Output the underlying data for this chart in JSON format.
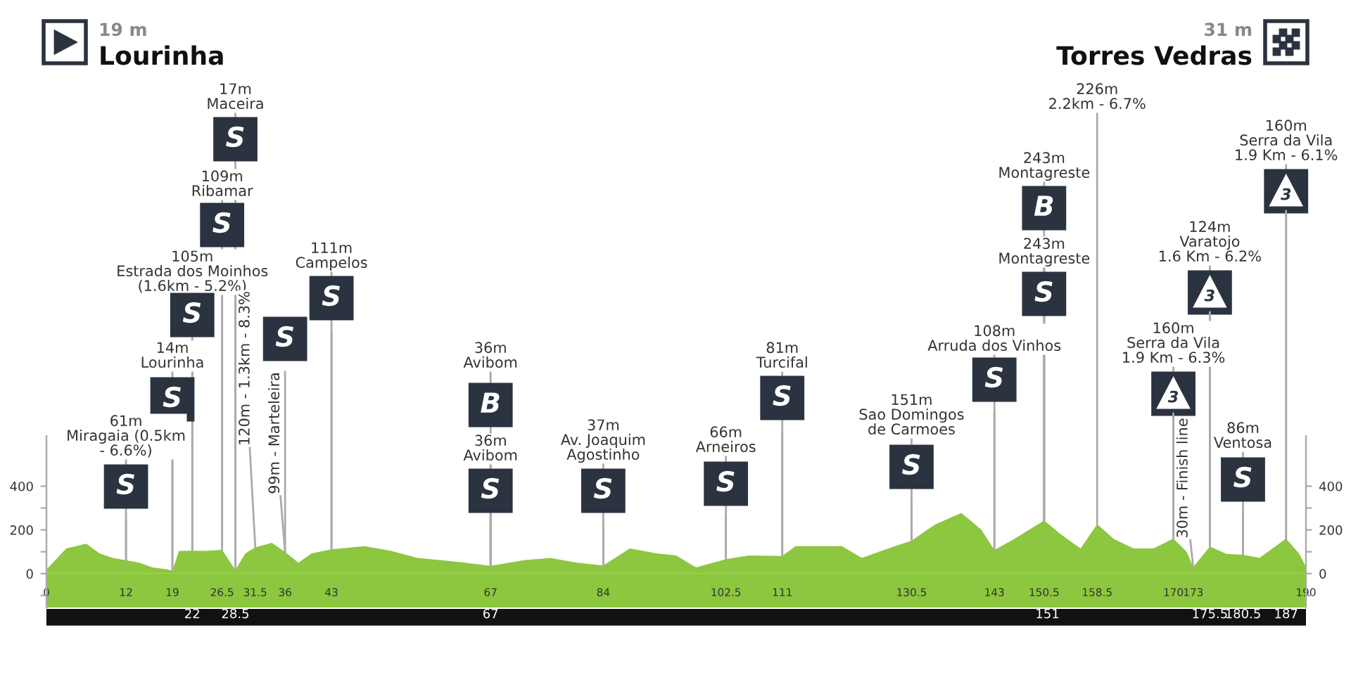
{
  "chart_data": {
    "type": "area",
    "x": [
      0,
      3,
      6,
      8,
      10,
      12,
      14,
      16,
      18,
      19,
      20,
      22,
      24,
      26.5,
      28.5,
      30,
      31.5,
      34,
      36,
      38,
      40,
      43,
      48,
      52,
      56,
      62,
      67,
      72,
      76,
      80,
      84,
      88,
      92,
      95,
      98,
      102.5,
      106,
      111,
      113,
      120,
      123,
      127,
      130.5,
      134,
      138,
      141,
      143,
      146,
      150.5,
      153,
      156,
      158.5,
      161,
      164,
      167,
      170,
      172,
      173,
      175.5,
      178,
      180.5,
      183,
      187,
      189,
      190
    ],
    "series": [
      {
        "color": "#8dc63f",
        "values": [
          19,
          115,
          137,
          93,
          72,
          61,
          50,
          28,
          20,
          14,
          104,
          105,
          104,
          109,
          17,
          93,
          120,
          141,
          99,
          50,
          93,
          111,
          126,
          104,
          72,
          54,
          36,
          61,
          72,
          50,
          37,
          115,
          93,
          83,
          28,
          66,
          83,
          81,
          126,
          126,
          72,
          115,
          151,
          224,
          278,
          202,
          108,
          159,
          243,
          180,
          115,
          226,
          159,
          115,
          115,
          160,
          100,
          30,
          124,
          90,
          86,
          72,
          160,
          90,
          31
        ]
      }
    ],
    "xlim": [
      0,
      190
    ],
    "xticks": [
      0,
      12,
      19,
      26.5,
      31.5,
      36,
      43,
      67,
      84,
      102.5,
      111,
      130.5,
      143,
      150.5,
      158.5,
      170,
      173,
      190
    ],
    "x2lim": [
      0,
      190
    ],
    "x2ticks": [
      22,
      28.5,
      67,
      151,
      175.5,
      180.5,
      187
    ],
    "ylim": [
      -155,
      630
    ],
    "yticks": [
      {
        "value": -100,
        "label": null
      },
      0,
      {
        "value": 100,
        "label": null
      },
      200,
      {
        "value": 300,
        "label": null
      },
      400
    ],
    "y2lim": [
      -155,
      630
    ],
    "y2ticks": [
      {
        "value": -100,
        "label": null
      },
      0,
      {
        "value": 100,
        "label": null
      },
      200,
      {
        "value": 300,
        "label": null
      },
      400
    ],
    "annotations": [
      "19 m",
      "Lourinha",
      "31 m",
      "Torres Vedras",
      {
        "text": "61m\nMiragaia (0.5km\n- 6.6%)",
        "x": 12,
        "y": 61
      },
      {
        "text": "S",
        "x": 12,
        "y": 61
      },
      {
        "text": "14m\nLourinha",
        "x": 19,
        "y": 14
      },
      {
        "text": "S",
        "x": 19,
        "y": 14
      },
      {
        "text": "105m\nEstrada dos Moinhos\n(1.6km - 5.2%)",
        "x": 22,
        "y": 105
      },
      {
        "text": "S",
        "x": 22,
        "y": 105
      },
      {
        "text": "109m\nRibamar",
        "x": 26.5,
        "y": 109
      },
      {
        "text": "S",
        "x": 26.5,
        "y": 109
      },
      {
        "text": "17m\nMaceira",
        "x": 28.5,
        "y": 17
      },
      {
        "text": "S",
        "x": 28.5,
        "y": 17
      },
      {
        "text": "120m - 1.3km - 8.3%",
        "x": 31.5,
        "y": 120
      },
      {
        "text": "S",
        "x": 36,
        "y": 99
      },
      {
        "text": "99m - Marteleira",
        "x": 36,
        "y": 99
      },
      {
        "text": "111m\nCampelos",
        "x": 43,
        "y": 111
      },
      {
        "text": "S",
        "x": 43,
        "y": 111
      },
      {
        "text": "36m\nAvibom",
        "x": 67,
        "y": 36
      },
      {
        "text": "B",
        "x": 67,
        "y": 36
      },
      {
        "text": "36m\nAvibom",
        "x": 67,
        "y": 36
      },
      {
        "text": "S",
        "x": 67,
        "y": 36
      },
      {
        "text": "37m\nAv. Joaquim\nAgostinho",
        "x": 84,
        "y": 37
      },
      {
        "text": "S",
        "x": 84,
        "y": 37
      },
      {
        "text": "66m\nArneiros",
        "x": 102.5,
        "y": 66
      },
      {
        "text": "S",
        "x": 102.5,
        "y": 66
      },
      {
        "text": "81m\nTurcifal",
        "x": 111,
        "y": 81
      },
      {
        "text": "S",
        "x": 111,
        "y": 81
      },
      {
        "text": "151m\nSao Domingos\nde Carmoes",
        "x": 130.5,
        "y": 151
      },
      {
        "text": "S",
        "x": 130.5,
        "y": 151
      },
      {
        "text": "108m\nArruda dos Vinhos",
        "x": 143,
        "y": 108
      },
      {
        "text": "S",
        "x": 143,
        "y": 108
      },
      {
        "text": "243m\nMontagreste",
        "x": 150.5,
        "y": 243
      },
      {
        "text": "B",
        "x": 150.5,
        "y": 243
      },
      {
        "text": "243m\nMontagreste",
        "x": 150.5,
        "y": 243
      },
      {
        "text": "S",
        "x": 150.5,
        "y": 243
      },
      {
        "text": "226m\n2.2km - 6.7%",
        "x": 158.5,
        "y": 226
      },
      {
        "text": "160m\nSerra da Vila\n1.9 Km - 6.3%",
        "x": 170,
        "y": 160
      },
      {
        "text": "3",
        "x": 170,
        "y": 160
      },
      {
        "text": "30m - Finish line",
        "x": 173,
        "y": 30
      },
      {
        "text": "124m\nVaratojo\n1.6 Km - 6.2%",
        "x": 175.5,
        "y": 124
      },
      {
        "text": "3",
        "x": 175.5,
        "y": 124
      },
      {
        "text": "86m\nVentosa",
        "x": 180.5,
        "y": 86
      },
      {
        "text": "S",
        "x": 180.5,
        "y": 86
      },
      {
        "text": "160m\nSerra da Vila\n1.9 Km - 6.1%",
        "x": 187,
        "y": 160
      },
      {
        "text": "3",
        "x": 187,
        "y": 160
      }
    ]
  }
}
